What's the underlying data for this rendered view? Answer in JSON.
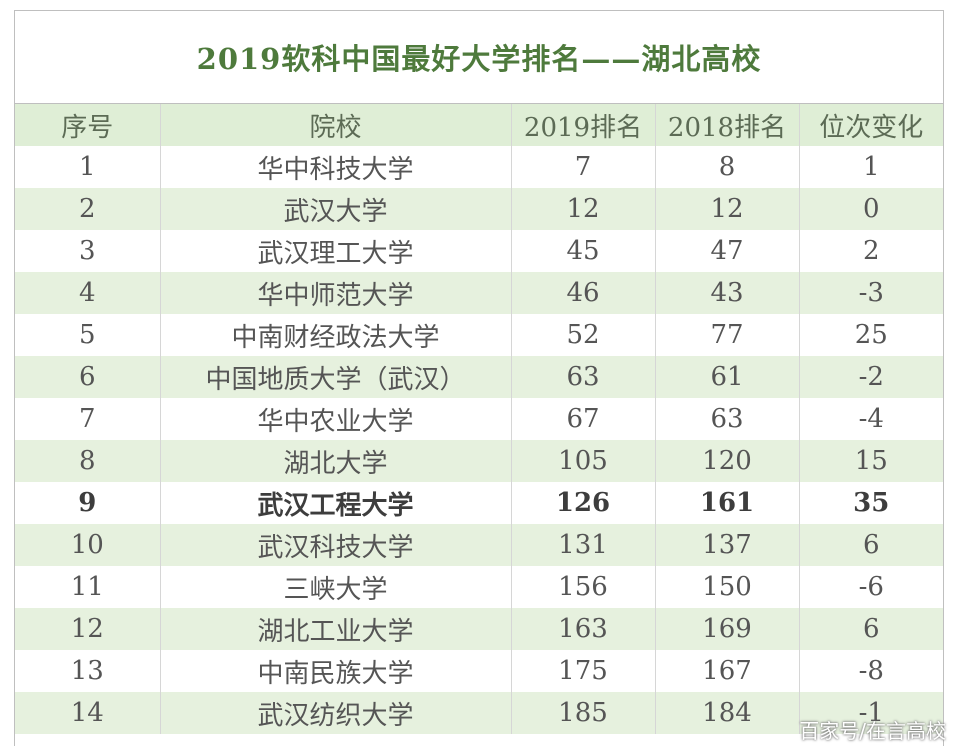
{
  "title": "2019软科中国最好大学排名——湖北高校",
  "headers": [
    "序号",
    "院校",
    "2019排名",
    "2018排名",
    "位次变化"
  ],
  "rows": [
    [
      "1",
      "华中科技大学",
      "7",
      "8",
      "1"
    ],
    [
      "2",
      "武汉大学",
      "12",
      "12",
      "0"
    ],
    [
      "3",
      "武汉理工大学",
      "45",
      "47",
      "2"
    ],
    [
      "4",
      "华中师范大学",
      "46",
      "43",
      "-3"
    ],
    [
      "5",
      "中南财经政法大学",
      "52",
      "77",
      "25"
    ],
    [
      "6",
      "中国地质大学（武汉）",
      "63",
      "61",
      "-2"
    ],
    [
      "7",
      "华中农业大学",
      "67",
      "63",
      "-4"
    ],
    [
      "8",
      "湖北大学",
      "105",
      "120",
      "15"
    ],
    [
      "9",
      "武汉工程大学",
      "126",
      "161",
      "35"
    ],
    [
      "10",
      "武汉科技大学",
      "131",
      "137",
      "6"
    ],
    [
      "11",
      "三峡大学",
      "156",
      "150",
      "-6"
    ],
    [
      "12",
      "湖北工业大学",
      "163",
      "169",
      "6"
    ],
    [
      "13",
      "中南民族大学",
      "175",
      "167",
      "-8"
    ],
    [
      "14",
      "武汉纺织大学",
      "185",
      "184",
      "-1"
    ]
  ],
  "highlighted_row": "9",
  "watermark": "百家号/在言高校",
  "colors": {
    "title": "#4e7a3c",
    "header_bg": "#dfeed6",
    "stripe_bg": "#e6f1de"
  }
}
